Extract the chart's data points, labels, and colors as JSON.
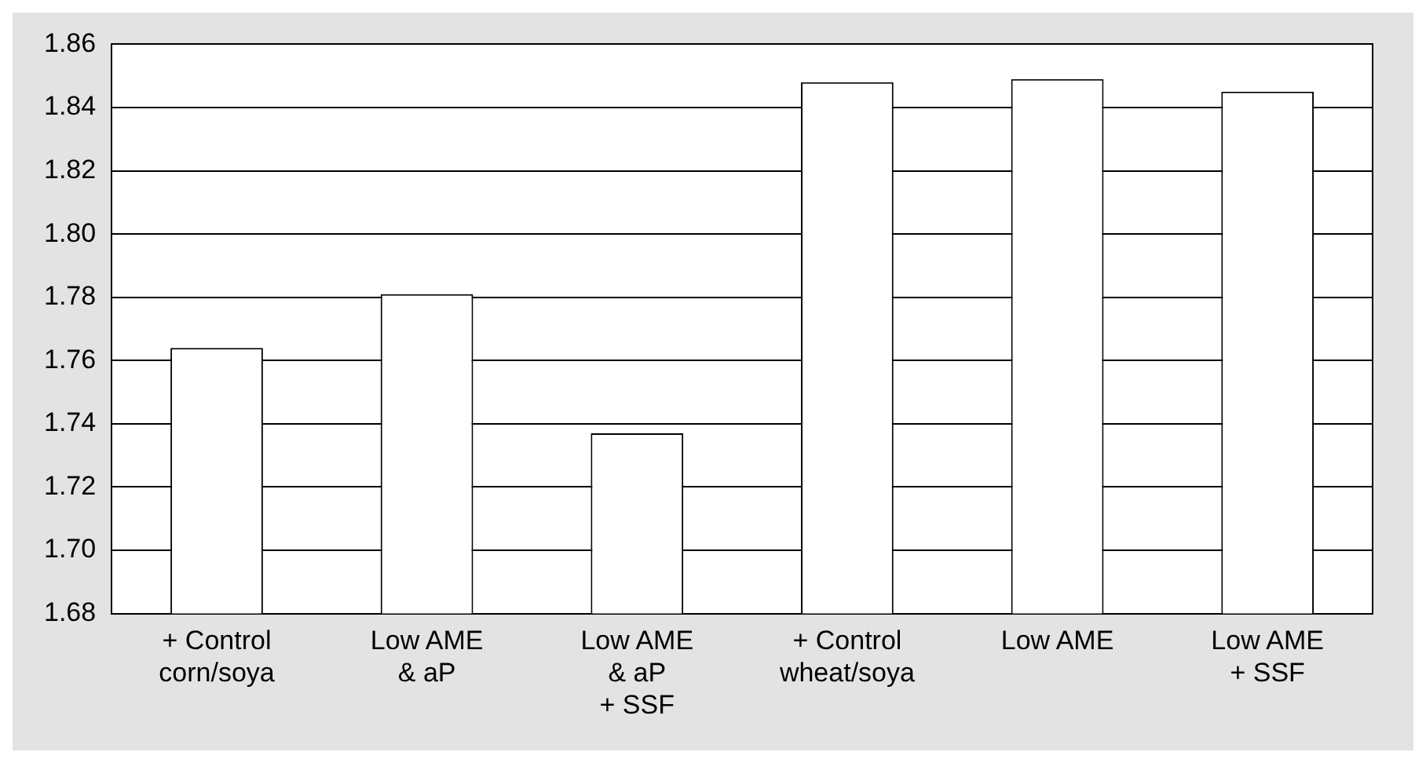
{
  "chart_data": {
    "type": "bar",
    "categories": [
      "+ Control\ncorn/soya",
      "Low AME\n& aP",
      "Low AME\n& aP\n+ SSF",
      "+ Control\nwheat/soya",
      "Low AME",
      "Low AME\n+ SSF"
    ],
    "values": [
      1.764,
      1.781,
      1.737,
      1.848,
      1.849,
      1.845
    ],
    "color": "#ffffff",
    "ylim": [
      1.68,
      1.86
    ],
    "yticks": [
      1.68,
      {
        "value": 1.7,
        "label": "1.70"
      },
      1.72,
      1.74,
      1.76,
      1.78,
      {
        "value": 1.8,
        "label": "1.80"
      },
      1.82,
      1.84,
      1.86
    ],
    "grid": "y",
    "legend": false
  }
}
